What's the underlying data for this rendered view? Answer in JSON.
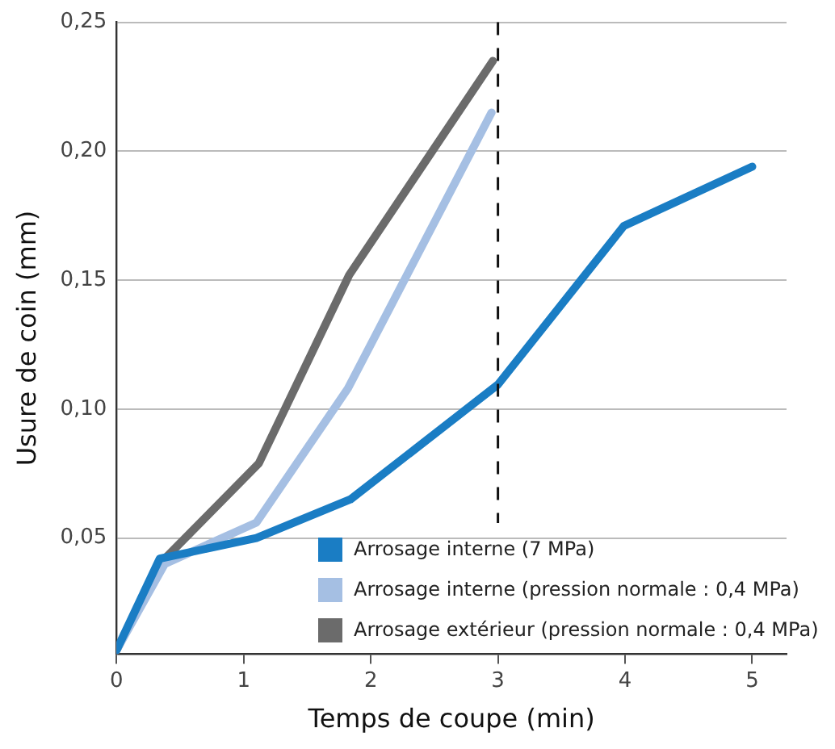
{
  "chart_data": {
    "type": "line",
    "xlabel": "Temps de coupe (min)",
    "ylabel": "Usure de coin (mm)",
    "xlim": [
      0,
      5.27
    ],
    "xticks": [
      0,
      1,
      2,
      3,
      4,
      5
    ],
    "ylim": [
      0.005,
      0.25
    ],
    "yticks": [
      {
        "value": 0.05,
        "label": "0,05"
      },
      {
        "value": 0.1,
        "label": "0,10"
      },
      {
        "value": 0.15,
        "label": "0,15"
      },
      {
        "value": 0.2,
        "label": "0,20"
      },
      {
        "value": 0.25,
        "label": "0,25"
      }
    ],
    "grid": "y",
    "legend": "bottom right",
    "marker": "none",
    "line_style": "solid",
    "ref_lines": [
      {
        "axis": "x",
        "value": 3,
        "color": "#111111",
        "line_style": "dashed"
      }
    ],
    "series": [
      {
        "name": "Arrosage interne (7 MPa)",
        "color": "#1a7dc4",
        "x": [
          0,
          0.34,
          1.1,
          1.84,
          3.0,
          3.99,
          5.0
        ],
        "values": [
          0.0065,
          0.042,
          0.05,
          0.065,
          0.1095,
          0.171,
          0.194
        ]
      },
      {
        "name": "Arrosage interne (pression normale : 0,4 MPa)",
        "color": "#a5bfe3",
        "x": [
          0,
          0.38,
          1.1,
          1.82,
          2.95
        ],
        "values": [
          0.0065,
          0.04,
          0.056,
          0.108,
          0.215
        ]
      },
      {
        "name": "Arrosage extérieur (pression normale : 0,4 MPa)",
        "color": "#6b6b6b",
        "x": [
          0,
          0.36,
          1.12,
          1.83,
          2.96
        ],
        "values": [
          0.0065,
          0.041,
          0.079,
          0.152,
          0.235
        ]
      }
    ]
  }
}
